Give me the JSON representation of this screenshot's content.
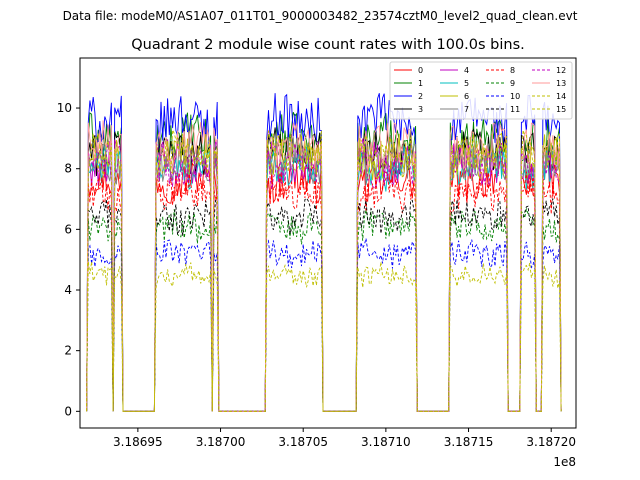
{
  "chart_data": {
    "type": "line",
    "suptitle": "Data file: modeM0/AS1A07_011T01_9000003482_23574cztM0_level2_quad_clean.evt",
    "title": "Quadrant 2 module wise count rates with 100.0s bins.",
    "xlabel": "",
    "ylabel": "",
    "x_offset_label": "1e8",
    "xlim": [
      3.186915,
      3.187215
    ],
    "ylim": [
      -0.55,
      11.65
    ],
    "xticks": [
      3.18695,
      3.187,
      3.18705,
      3.1871,
      3.18715,
      3.1872
    ],
    "xtick_labels": [
      "3.18695",
      "3.18700",
      "3.18705",
      "3.18710",
      "3.18715",
      "3.18720"
    ],
    "yticks": [
      0,
      2,
      4,
      6,
      8,
      10
    ],
    "ytick_labels": [
      "0",
      "2",
      "4",
      "6",
      "8",
      "10"
    ],
    "legend_position": "top-right",
    "active_intervals": [
      [
        3.18692,
        3.186934
      ],
      [
        3.186936,
        3.18694
      ],
      [
        3.186961,
        3.186994
      ],
      [
        3.186996,
        3.186998
      ],
      [
        3.187028,
        3.187061
      ],
      [
        3.187083,
        3.187118
      ],
      [
        3.187139,
        3.187173
      ],
      [
        3.187182,
        3.18719
      ],
      [
        3.187195,
        3.187205
      ]
    ],
    "series": [
      {
        "name": "0",
        "color": "#ff0000",
        "dash": "solid",
        "level": 7.6
      },
      {
        "name": "1",
        "color": "#008000",
        "dash": "solid",
        "level": 9.0
      },
      {
        "name": "2",
        "color": "#0000ff",
        "dash": "solid",
        "level": 9.6
      },
      {
        "name": "3",
        "color": "#000000",
        "dash": "solid",
        "level": 8.6
      },
      {
        "name": "4",
        "color": "#c000c0",
        "dash": "solid",
        "level": 8.2
      },
      {
        "name": "5",
        "color": "#00bfbf",
        "dash": "solid",
        "level": 8.0
      },
      {
        "name": "6",
        "color": "#bfbf00",
        "dash": "solid",
        "level": 8.4
      },
      {
        "name": "7",
        "color": "#808080",
        "dash": "solid",
        "level": 8.3
      },
      {
        "name": "8",
        "color": "#ff0000",
        "dash": "dashed",
        "level": 7.2
      },
      {
        "name": "9",
        "color": "#008000",
        "dash": "dashed",
        "level": 6.1
      },
      {
        "name": "10",
        "color": "#0000ff",
        "dash": "dashed",
        "level": 5.2
      },
      {
        "name": "11",
        "color": "#000000",
        "dash": "dashed",
        "level": 6.4
      },
      {
        "name": "12",
        "color": "#c000c0",
        "dash": "dashed",
        "level": 8.1
      },
      {
        "name": "13",
        "color": "#ff9999",
        "dash": "solid",
        "level": 8.8
      },
      {
        "name": "14",
        "color": "#bfbf00",
        "dash": "dashed",
        "level": 4.5
      },
      {
        "name": "15",
        "color": "#bfbf00",
        "dash": "dashed",
        "level": 8.5
      }
    ]
  }
}
